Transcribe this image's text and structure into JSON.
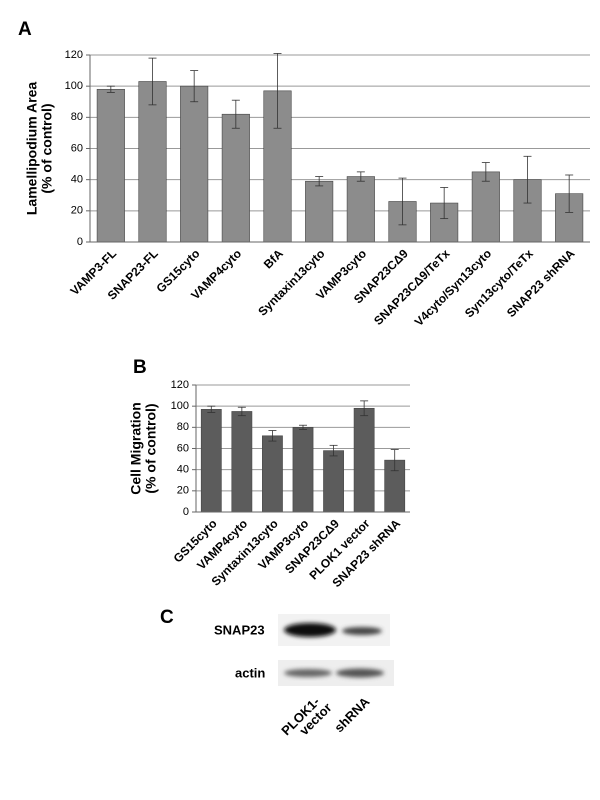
{
  "chart_data": [
    {
      "type": "bar",
      "panel_label": "A",
      "ylabel": [
        "Lamellipodium Area",
        "(% of control)"
      ],
      "categories": [
        "VAMP3-FL",
        "SNAP23-FL",
        "GS15cyto",
        "VAMP4cyto",
        "BfA",
        "Syntaxin13cyto",
        "VAMP3cyto",
        "SNAP23CΔ9",
        "SNAP23CΔ9/TeTx",
        "V4cyto/Syn13cyto",
        "Syn13cyto/TeTx",
        "SNAP23 shRNA"
      ],
      "values": [
        98,
        103,
        100,
        82,
        97,
        39,
        42,
        26,
        25,
        45,
        40,
        31
      ],
      "errors": [
        2,
        15,
        10,
        9,
        24,
        3,
        3,
        15,
        10,
        6,
        15,
        12
      ],
      "color": "#8c8c8c",
      "ylim": [
        0,
        120
      ],
      "yticks": [
        0,
        20,
        40,
        60,
        80,
        100,
        120
      ],
      "grid": true
    },
    {
      "type": "bar",
      "panel_label": "B",
      "ylabel": [
        "Cell Migration",
        "(% of control)"
      ],
      "categories": [
        "GS15cyto",
        "VAMP4cyto",
        "Syntaxin13cyto",
        "VAMP3cyto",
        "SNAP23CΔ9",
        "PLOK1 vector",
        "SNAP23 shRNA"
      ],
      "values": [
        97,
        95,
        72,
        80,
        58,
        98,
        49
      ],
      "errors": [
        3,
        4,
        5,
        2,
        5,
        7,
        10
      ],
      "color": "#5c5c5c",
      "ylim": [
        0,
        120
      ],
      "yticks": [
        0,
        20,
        40,
        60,
        80,
        100,
        120
      ],
      "grid": true
    }
  ],
  "blot": {
    "panel_label": "C",
    "rows": [
      "SNAP23",
      "actin"
    ],
    "lanes": [
      [
        "PLOK1-",
        "vector"
      ],
      [
        "shRNA"
      ]
    ]
  }
}
